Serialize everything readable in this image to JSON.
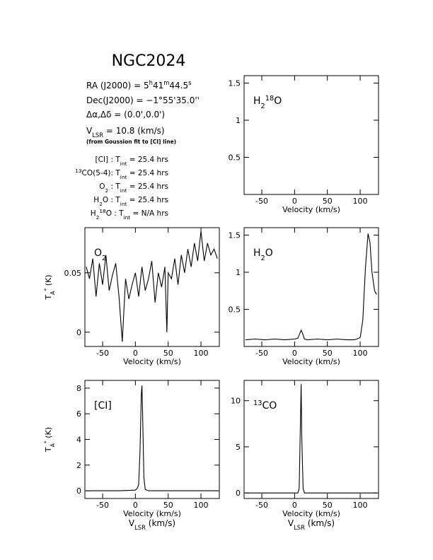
{
  "header": {
    "title": "NGC2024"
  },
  "info": {
    "ra": [
      "RA (J2000) = 5",
      "h",
      "41",
      "m",
      "44.5",
      "s"
    ],
    "dec": [
      "Dec(J2000) = −1°55'35.0''"
    ],
    "offset": [
      "Δα,Δδ = (0.0',0.0')"
    ],
    "vlsr": [
      "V",
      "LSR",
      " = 10.8 (km/s)"
    ],
    "note": [
      "(from Goussion fit to [CI] line)"
    ],
    "tint": [
      [
        "[CI] : T",
        "int",
        " = 25.4 hrs"
      ],
      [
        "13",
        "CO(5-4): T",
        "int",
        " = 25.4 hrs"
      ],
      [
        "O",
        "2",
        " : T",
        "int",
        " = 25.4 hrs"
      ],
      [
        "H",
        "2",
        "O : T",
        "int",
        " = 25.4 hrs"
      ],
      [
        "H",
        "2",
        "18",
        "O : T",
        "int",
        " = N/A hrs"
      ]
    ]
  },
  "chart_data": [
    {
      "type": "line",
      "label": [
        "H",
        "2",
        "18",
        "O"
      ],
      "xlabel": [
        "Velocity (km/s)"
      ],
      "xlim": [
        -77,
        128
      ],
      "ylim": [
        0,
        1.6
      ],
      "xticks": [
        -50,
        0,
        50,
        100
      ],
      "yticks": [
        0.5,
        1,
        1.5
      ],
      "x": [],
      "series": []
    },
    {
      "type": "line",
      "label": [
        "O",
        "2"
      ],
      "xlabel": [
        "Velocity (km/s)"
      ],
      "ylabel": [
        "T",
        "A",
        "*",
        " (K)"
      ],
      "xlim": [
        -77,
        128
      ],
      "ylim": [
        -0.012,
        0.088
      ],
      "xticks": [
        -50,
        0,
        50,
        100
      ],
      "yticks": [
        0,
        0.05
      ],
      "x": [
        -75,
        -70,
        -65,
        -60,
        -55,
        -50,
        -45,
        -40,
        -35,
        -30,
        -25,
        -20,
        -15,
        -10,
        -5,
        0,
        5,
        10,
        15,
        20,
        25,
        30,
        35,
        40,
        45,
        48,
        50,
        55,
        60,
        65,
        70,
        75,
        80,
        85,
        90,
        95,
        100,
        105,
        110,
        115,
        120,
        125
      ],
      "series": [
        {
          "color": "#000000",
          "values": [
            0.055,
            0.045,
            0.062,
            0.03,
            0.058,
            0.04,
            0.065,
            0.035,
            0.048,
            0.058,
            0.03,
            -0.008,
            0.045,
            0.028,
            0.04,
            0.05,
            0.03,
            0.055,
            0.035,
            0.045,
            0.06,
            0.025,
            0.05,
            0.038,
            0.055,
            0.0,
            0.05,
            0.045,
            0.062,
            0.04,
            0.065,
            0.05,
            0.07,
            0.055,
            0.075,
            0.06,
            0.085,
            0.06,
            0.075,
            0.065,
            0.07,
            0.062
          ]
        }
      ]
    },
    {
      "type": "line",
      "label": [
        "H",
        "2",
        "O"
      ],
      "xlabel": [
        "Velocity (km/s)"
      ],
      "xlim": [
        -77,
        128
      ],
      "ylim": [
        0,
        1.6
      ],
      "xticks": [
        -50,
        0,
        50,
        100
      ],
      "yticks": [
        0.5,
        1,
        1.5
      ],
      "x": [
        -75,
        -60,
        -45,
        -30,
        -15,
        0,
        5,
        10,
        12,
        15,
        20,
        35,
        50,
        65,
        80,
        90,
        95,
        100,
        104,
        108,
        112,
        115,
        118,
        122,
        125
      ],
      "series": [
        {
          "color": "#000000",
          "values": [
            0.09,
            0.1,
            0.09,
            0.1,
            0.09,
            0.1,
            0.11,
            0.22,
            0.18,
            0.1,
            0.09,
            0.1,
            0.09,
            0.1,
            0.09,
            0.09,
            0.1,
            0.12,
            0.35,
            1.05,
            1.52,
            1.4,
            1.0,
            0.75,
            0.7
          ]
        }
      ]
    },
    {
      "type": "line",
      "label": [
        "[CI]"
      ],
      "xlabel": [
        "Velocity (km/s)"
      ],
      "xlabel2": [
        "V",
        "LSR",
        " (km/s)"
      ],
      "ylabel": [
        "T",
        "A",
        "*",
        " (K)"
      ],
      "xlim": [
        -77,
        128
      ],
      "ylim": [
        -0.6,
        8.6
      ],
      "xticks": [
        -50,
        0,
        50,
        100
      ],
      "yticks": [
        0,
        2,
        4,
        6,
        8
      ],
      "x": [
        -75,
        -50,
        -25,
        0,
        3,
        5,
        7,
        9,
        10,
        11,
        13,
        15,
        20,
        50,
        75,
        100,
        125
      ],
      "series": [
        {
          "color": "#000000",
          "values": [
            0,
            0,
            0,
            0.05,
            0.2,
            0.5,
            3,
            7.5,
            8.2,
            6,
            1,
            0.1,
            0,
            0,
            0,
            0,
            0
          ]
        }
      ]
    },
    {
      "type": "line",
      "label": [
        "13",
        "CO"
      ],
      "xlabel": [
        "Velocity (km/s)"
      ],
      "xlabel2": [
        "V",
        "LSR",
        " (km/s)"
      ],
      "xlim": [
        -77,
        128
      ],
      "ylim": [
        -0.6,
        12.2
      ],
      "xticks": [
        -50,
        0,
        50,
        100
      ],
      "yticks": [
        0,
        5,
        10
      ],
      "x": [
        -75,
        -50,
        -25,
        0,
        5,
        7,
        9,
        10,
        11,
        13,
        15,
        20,
        50,
        75,
        100,
        125
      ],
      "series": [
        {
          "color": "#000000",
          "values": [
            0,
            0,
            0,
            0,
            0,
            0.5,
            8,
            11.8,
            6,
            0.5,
            0,
            0,
            0,
            0,
            0,
            0
          ]
        }
      ]
    }
  ]
}
